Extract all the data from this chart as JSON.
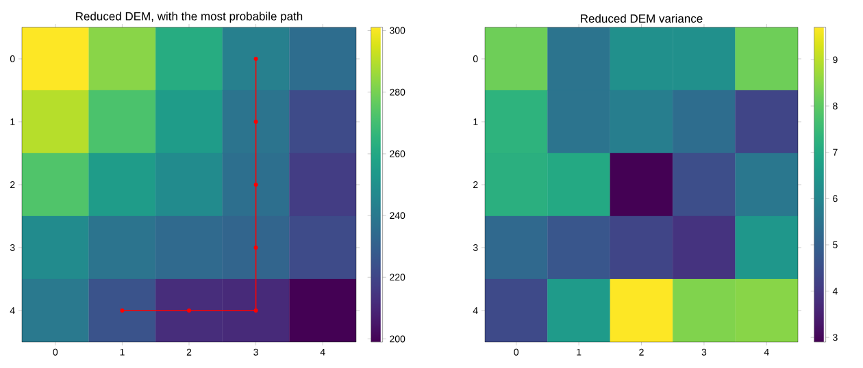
{
  "chart_data": [
    {
      "type": "heatmap",
      "title": "Reduced DEM, with the most probabile path",
      "categories": [
        "0",
        "1",
        "2",
        "3",
        "4"
      ],
      "y_categories": [
        "0",
        "1",
        "2",
        "3",
        "4"
      ],
      "cells": [
        [
          301,
          283,
          262,
          243,
          235
        ],
        [
          290,
          272,
          255,
          238,
          222
        ],
        [
          273,
          255,
          248,
          236,
          217
        ],
        [
          248,
          238,
          234,
          232,
          222
        ],
        [
          240,
          225,
          212,
          211,
          199
        ]
      ],
      "clim": [
        199,
        301
      ],
      "cticks": [
        200,
        220,
        240,
        260,
        280,
        300
      ],
      "series": [
        {
          "type": "line",
          "color": "#ff0000",
          "marker": "circle",
          "x": [
            "1",
            "2",
            "3",
            "3",
            "3",
            "3",
            "3"
          ],
          "values": [
            4,
            4,
            4,
            3,
            2,
            1,
            0
          ]
        }
      ]
    },
    {
      "type": "heatmap",
      "title": "Reduced DEM variance",
      "categories": [
        "0",
        "1",
        "2",
        "3",
        "4"
      ],
      "y_categories": [
        "0",
        "1",
        "2",
        "3",
        "4"
      ],
      "cells": [
        [
          8.2,
          5.5,
          6.3,
          6.3,
          8.2
        ],
        [
          7.3,
          5.5,
          5.8,
          5.3,
          4.3
        ],
        [
          7.2,
          7.0,
          2.9,
          4.5,
          5.6
        ],
        [
          5.2,
          4.7,
          4.3,
          3.9,
          6.5
        ],
        [
          4.4,
          6.6,
          9.7,
          8.4,
          8.5
        ]
      ],
      "clim": [
        2.9,
        9.7
      ],
      "cticks": [
        3,
        4,
        5,
        6,
        7,
        8,
        9
      ]
    }
  ]
}
